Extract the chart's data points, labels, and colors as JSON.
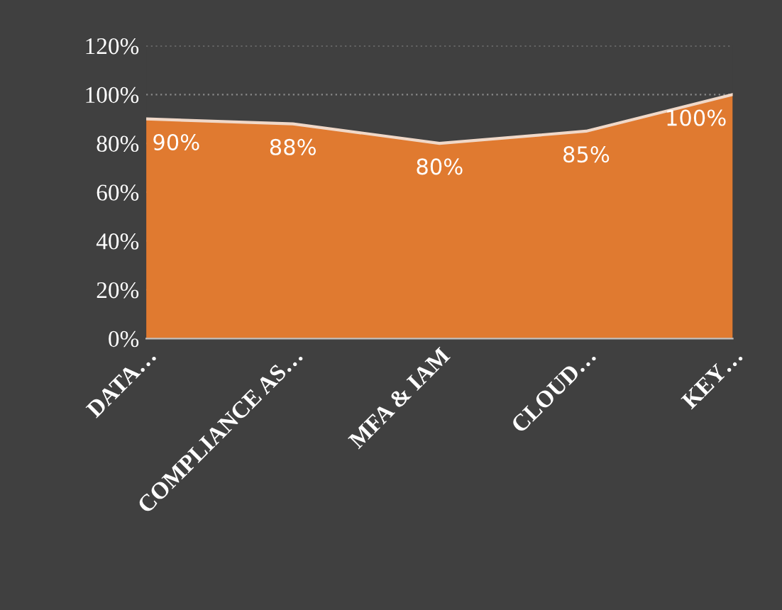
{
  "chart_data": {
    "type": "area",
    "categories": [
      "DATA…",
      "COMPLIANCE AS…",
      "MFA & IAM",
      "CLOUD…",
      "KEY…"
    ],
    "series": [
      {
        "color": "#e07a30",
        "values": [
          90,
          88,
          80,
          85,
          100
        ],
        "value_labels": [
          "90%",
          "88%",
          "80%",
          "85%",
          "100%"
        ]
      }
    ],
    "ylim": [
      0,
      120
    ],
    "yticks": [
      {
        "value": 0,
        "label": "0%"
      },
      {
        "value": 20,
        "label": "20%"
      },
      {
        "value": 40,
        "label": "40%"
      },
      {
        "value": 60,
        "label": "60%"
      },
      {
        "value": 80,
        "label": "80%"
      },
      {
        "value": 100,
        "label": "100%"
      },
      {
        "value": 120,
        "label": "120%"
      }
    ],
    "grid": "y",
    "legend": false
  }
}
